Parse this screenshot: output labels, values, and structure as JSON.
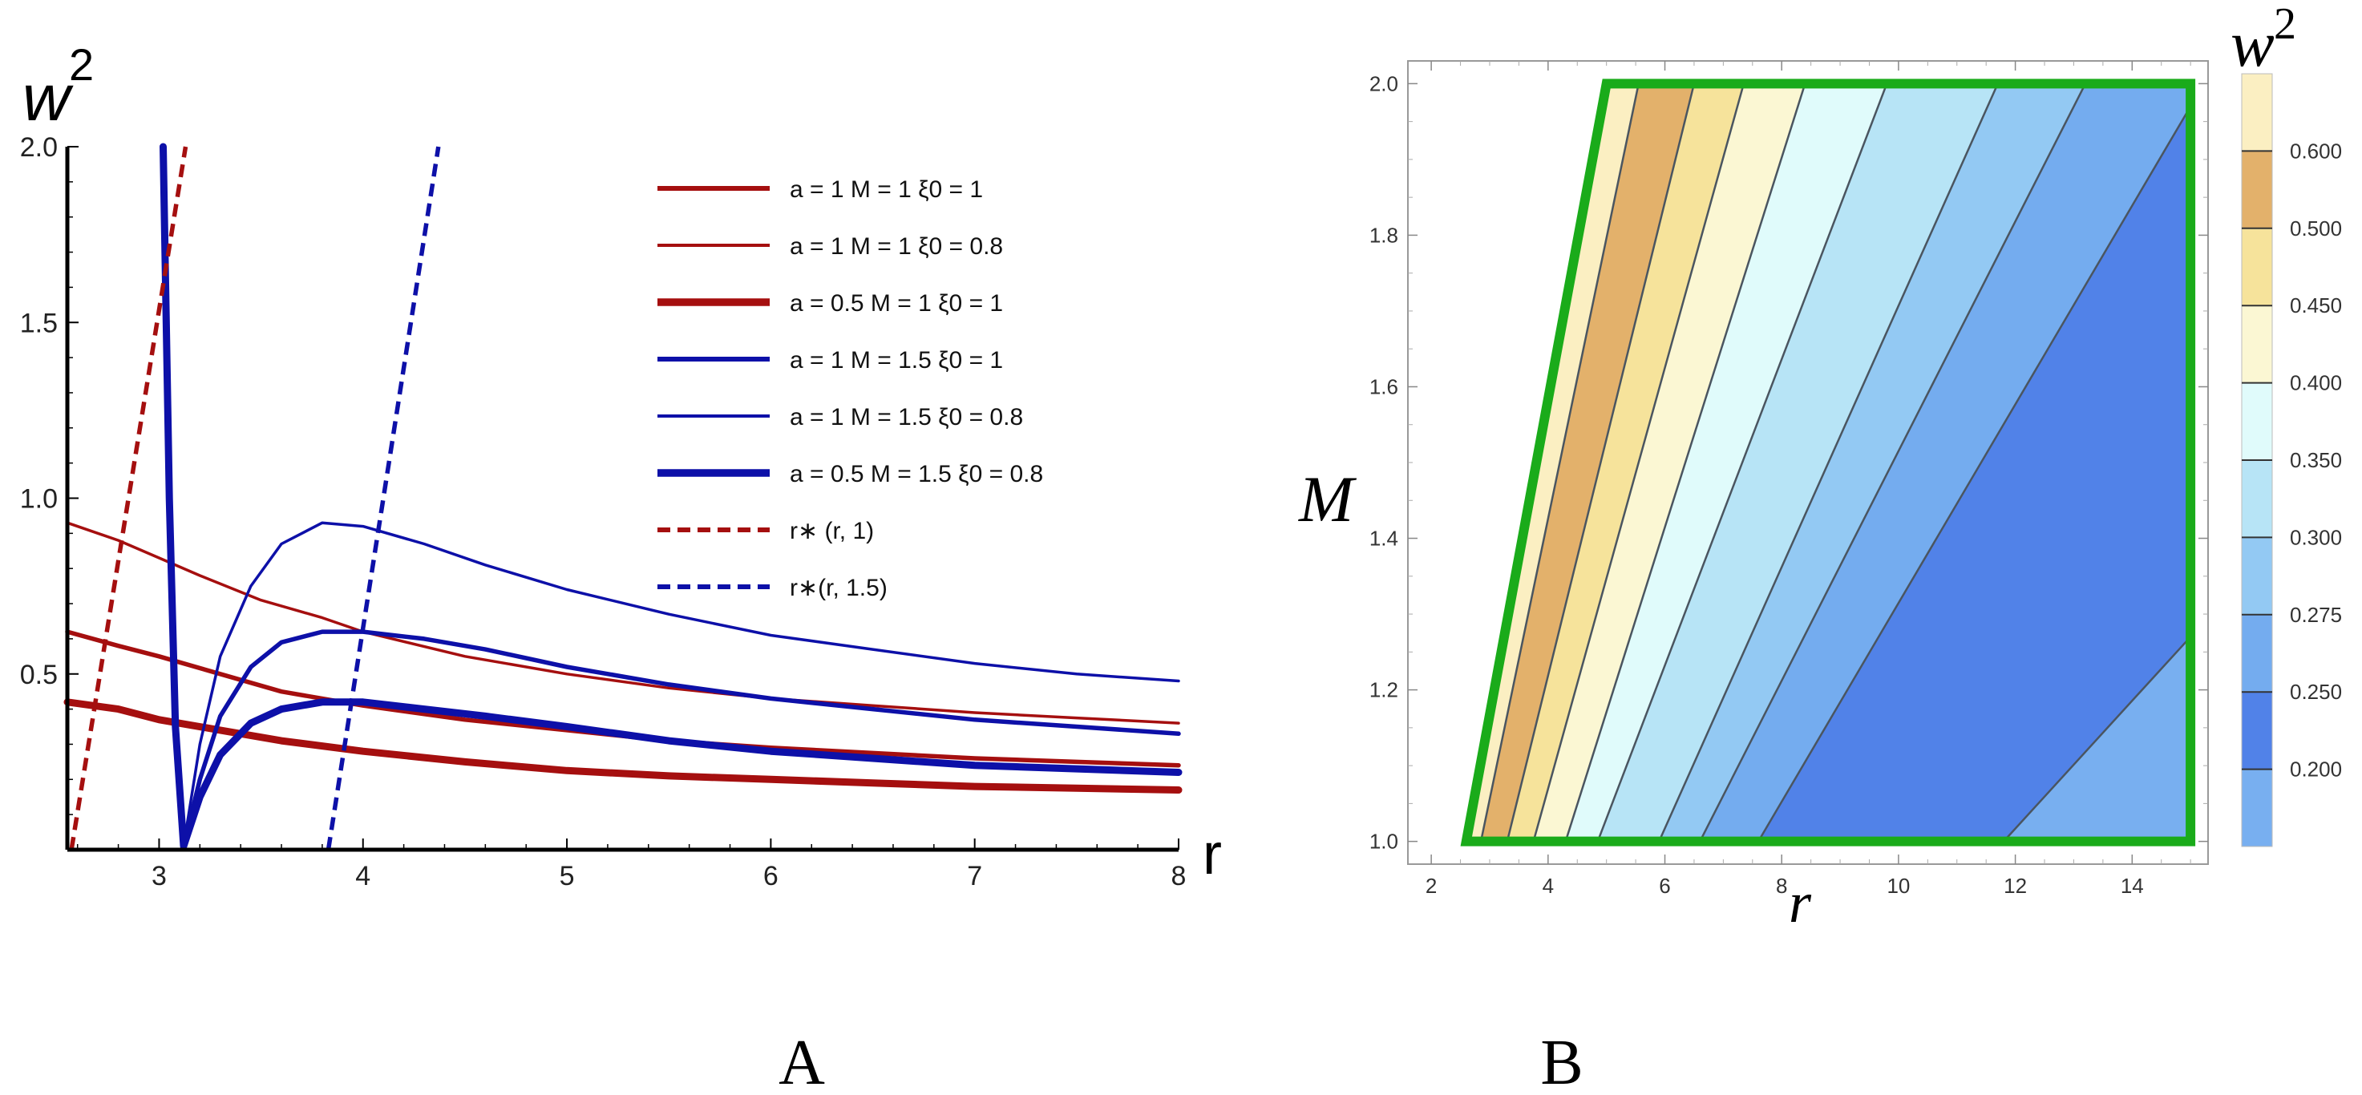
{
  "chart_data": [
    {
      "type": "line",
      "panel_label": "A",
      "xlabel": "r",
      "ylabel_base": "w",
      "ylabel_exp": "2",
      "xlim": [
        2.55,
        8
      ],
      "ylim": [
        0,
        2.0
      ],
      "x_ticks": [
        "3",
        "4",
        "5",
        "6",
        "7",
        "8"
      ],
      "y_ticks": [
        "0.5",
        "1.0",
        "1.5",
        "2.0"
      ],
      "series": [
        {
          "name": "a = 1    M = 1    ξ0 = 1",
          "color": "#a50f0f",
          "width": "medium",
          "style": "solid",
          "x": [
            2.55,
            2.8,
            3.0,
            3.3,
            3.6,
            4.0,
            4.5,
            5.0,
            5.5,
            6.0,
            6.5,
            7.0,
            7.5,
            8.0
          ],
          "y": [
            0.62,
            0.58,
            0.55,
            0.5,
            0.45,
            0.41,
            0.37,
            0.34,
            0.31,
            0.29,
            0.275,
            0.26,
            0.25,
            0.24
          ]
        },
        {
          "name": "a = 1    M = 1    ξ0 = 0.8",
          "color": "#a50f0f",
          "width": "thin",
          "style": "solid",
          "x": [
            2.55,
            2.8,
            3.0,
            3.2,
            3.5,
            3.8,
            4.0,
            4.5,
            5.0,
            5.5,
            6.0,
            6.5,
            7.0,
            7.5,
            8.0
          ],
          "y": [
            0.93,
            0.88,
            0.83,
            0.78,
            0.71,
            0.66,
            0.62,
            0.55,
            0.5,
            0.46,
            0.43,
            0.41,
            0.39,
            0.375,
            0.36
          ]
        },
        {
          "name": "a = 0.5 M = 1    ξ0 = 1",
          "color": "#a50f0f",
          "width": "thick",
          "style": "solid",
          "x": [
            2.55,
            2.8,
            3.0,
            3.3,
            3.6,
            4.0,
            4.5,
            5.0,
            5.5,
            6.0,
            6.5,
            7.0,
            7.5,
            8.0
          ],
          "y": [
            0.42,
            0.4,
            0.37,
            0.34,
            0.31,
            0.28,
            0.25,
            0.225,
            0.21,
            0.2,
            0.19,
            0.18,
            0.175,
            0.17
          ]
        },
        {
          "name": "a = 1    M = 1.5   ξ0 = 1",
          "color": "#0d10a8",
          "width": "medium",
          "style": "solid",
          "x": [
            3.02,
            3.05,
            3.08,
            3.12,
            3.2,
            3.3,
            3.45,
            3.6,
            3.8,
            4.0,
            4.3,
            4.6,
            5.0,
            5.5,
            6.0,
            6.5,
            7.0,
            7.5,
            8.0
          ],
          "y": [
            2.0,
            1.0,
            0.35,
            0.01,
            0.2,
            0.38,
            0.52,
            0.59,
            0.62,
            0.62,
            0.6,
            0.57,
            0.52,
            0.47,
            0.43,
            0.4,
            0.37,
            0.35,
            0.33
          ]
        },
        {
          "name": "a = 1    M = 1.5   ξ0 = 0.8",
          "color": "#0d10a8",
          "width": "thin",
          "style": "solid",
          "x": [
            3.02,
            3.05,
            3.08,
            3.12,
            3.2,
            3.3,
            3.45,
            3.6,
            3.8,
            4.0,
            4.3,
            4.6,
            5.0,
            5.5,
            6.0,
            6.5,
            7.0,
            7.5,
            8.0
          ],
          "y": [
            2.0,
            1.0,
            0.35,
            0.01,
            0.3,
            0.55,
            0.75,
            0.87,
            0.93,
            0.92,
            0.87,
            0.81,
            0.74,
            0.67,
            0.61,
            0.57,
            0.53,
            0.5,
            0.48
          ]
        },
        {
          "name": "a = 0.5  M = 1.5 ξ0 = 0.8",
          "color": "#0d10a8",
          "width": "thick",
          "style": "solid",
          "x": [
            3.02,
            3.05,
            3.08,
            3.12,
            3.2,
            3.3,
            3.45,
            3.6,
            3.8,
            4.0,
            4.3,
            4.6,
            5.0,
            5.5,
            6.0,
            6.5,
            7.0,
            7.5,
            8.0
          ],
          "y": [
            2.0,
            1.0,
            0.35,
            0.01,
            0.15,
            0.27,
            0.36,
            0.4,
            0.42,
            0.42,
            0.4,
            0.38,
            0.35,
            0.31,
            0.28,
            0.26,
            0.24,
            0.23,
            0.22
          ]
        },
        {
          "name": "r∗ (r, 1)",
          "color": "#a50f0f",
          "width": "medium",
          "style": "dashed",
          "x": [
            2.57,
            3.13
          ],
          "y": [
            0.0,
            2.0
          ]
        },
        {
          "name": "r∗(r, 1.5)",
          "color": "#0d10a8",
          "width": "medium",
          "style": "dashed",
          "x": [
            3.83,
            4.37
          ],
          "y": [
            0.0,
            2.0
          ]
        }
      ]
    },
    {
      "type": "contour",
      "panel_label": "B",
      "xlabel": "r",
      "ylabel": "M",
      "colorbar_title_base": "w",
      "colorbar_title_exp": "2",
      "xlim": [
        1.6,
        15.3
      ],
      "ylim": [
        0.97,
        2.03
      ],
      "x_ticks": [
        "2",
        "4",
        "6",
        "8",
        "10",
        "12",
        "14"
      ],
      "y_ticks": [
        "1.0",
        "1.2",
        "1.4",
        "1.6",
        "1.8",
        "2.0"
      ],
      "region_vertices": [
        [
          2.6,
          1.0
        ],
        [
          5.0,
          2.0
        ],
        [
          15.0,
          2.0
        ],
        [
          15.0,
          1.0
        ]
      ],
      "contour_levels": [
        "0.600",
        "0.500",
        "0.450",
        "0.400",
        "0.350",
        "0.300",
        "0.275",
        "0.250",
        "0.200"
      ],
      "contour_lines": [
        {
          "level": 0.6,
          "bottom_r": 2.85,
          "top_r": 5.55
        },
        {
          "level": 0.5,
          "bottom_r": 3.3,
          "top_r": 6.5
        },
        {
          "level": 0.45,
          "bottom_r": 3.75,
          "top_r": 7.35
        },
        {
          "level": 0.4,
          "bottom_r": 4.3,
          "top_r": 8.4
        },
        {
          "level": 0.35,
          "bottom_r": 4.85,
          "top_r": 9.8
        },
        {
          "level": 0.3,
          "bottom_r": 5.9,
          "top_r": 11.7
        },
        {
          "level": 0.275,
          "bottom_r": 6.6,
          "top_r": 13.2
        },
        {
          "level": 0.25,
          "bottom_r": 7.6,
          "top_r": 15.0,
          "top_M": 1.97
        },
        {
          "level": 0.2,
          "bottom_r": 11.8,
          "top_r": 15.0,
          "top_M": 1.27
        }
      ],
      "band_colors": [
        "#fbefc2",
        "#e3b16b",
        "#f6e39b",
        "#fbf7d3",
        "#e0fbfb",
        "#b7e4f6",
        "#93c9f3",
        "#74acef",
        "#5182e8",
        "#78aff0"
      ],
      "colorbar": {
        "labels": [
          "0.600",
          "0.500",
          "0.450",
          "0.400",
          "0.350",
          "0.300",
          "0.275",
          "0.250",
          "0.200"
        ],
        "colors": [
          "#fbefc2",
          "#e3b16b",
          "#f6e39b",
          "#fbf7d3",
          "#e0fbfb",
          "#b7e4f6",
          "#93c9f3",
          "#74acef",
          "#5182e8",
          "#78aff0"
        ]
      }
    }
  ]
}
